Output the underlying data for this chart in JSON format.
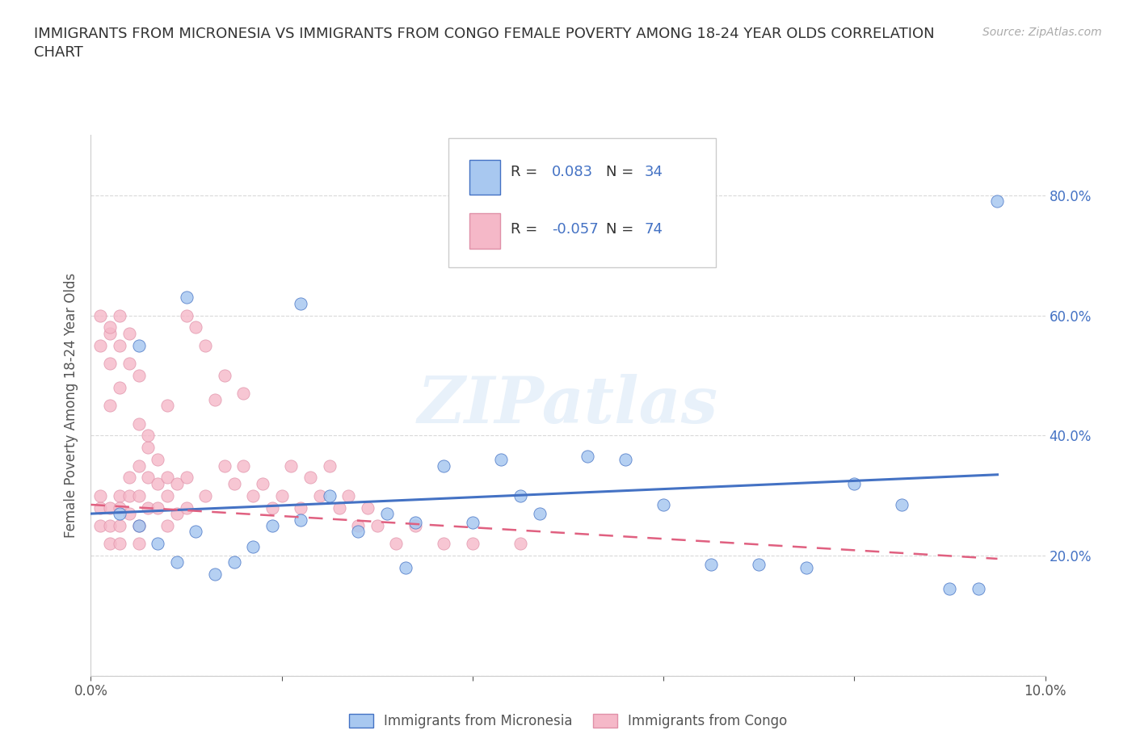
{
  "title": "IMMIGRANTS FROM MICRONESIA VS IMMIGRANTS FROM CONGO FEMALE POVERTY AMONG 18-24 YEAR OLDS CORRELATION\nCHART",
  "source": "Source: ZipAtlas.com",
  "ylabel": "Female Poverty Among 18-24 Year Olds",
  "watermark": "ZIPatlas",
  "xlim": [
    0.0,
    0.1
  ],
  "ylim": [
    0.0,
    0.9
  ],
  "ytick_positions": [
    0.0,
    0.2,
    0.4,
    0.6,
    0.8
  ],
  "yticklabels_right": [
    "",
    "20.0%",
    "40.0%",
    "60.0%",
    "80.0%"
  ],
  "micronesia_color": "#a8c8f0",
  "congo_color": "#f5b8c8",
  "line_micronesia": "#4472c4",
  "line_congo": "#e06080",
  "background_color": "#ffffff",
  "grid_color": "#d0d0d0",
  "mic_trend_x": [
    0.0,
    0.095
  ],
  "mic_trend_y": [
    0.27,
    0.335
  ],
  "con_trend_x": [
    0.0,
    0.095
  ],
  "con_trend_y": [
    0.285,
    0.195
  ],
  "micronesia_x": [
    0.003,
    0.005,
    0.007,
    0.009,
    0.011,
    0.013,
    0.015,
    0.017,
    0.019,
    0.022,
    0.025,
    0.028,
    0.031,
    0.034,
    0.037,
    0.04,
    0.043,
    0.047,
    0.052,
    0.056,
    0.06,
    0.065,
    0.07,
    0.075,
    0.08,
    0.085,
    0.09,
    0.093,
    0.095,
    0.005,
    0.01,
    0.022,
    0.033,
    0.045
  ],
  "micronesia_y": [
    0.27,
    0.25,
    0.22,
    0.19,
    0.24,
    0.17,
    0.19,
    0.215,
    0.25,
    0.26,
    0.3,
    0.24,
    0.27,
    0.255,
    0.35,
    0.255,
    0.36,
    0.27,
    0.365,
    0.36,
    0.285,
    0.185,
    0.185,
    0.18,
    0.32,
    0.285,
    0.145,
    0.145,
    0.79,
    0.55,
    0.63,
    0.62,
    0.18,
    0.3
  ],
  "congo_x": [
    0.001,
    0.001,
    0.001,
    0.002,
    0.002,
    0.002,
    0.003,
    0.003,
    0.003,
    0.003,
    0.004,
    0.004,
    0.004,
    0.005,
    0.005,
    0.005,
    0.005,
    0.006,
    0.006,
    0.006,
    0.007,
    0.007,
    0.007,
    0.008,
    0.008,
    0.008,
    0.009,
    0.009,
    0.01,
    0.01,
    0.011,
    0.012,
    0.013,
    0.014,
    0.015,
    0.016,
    0.017,
    0.018,
    0.019,
    0.02,
    0.021,
    0.022,
    0.023,
    0.024,
    0.025,
    0.026,
    0.027,
    0.028,
    0.029,
    0.03,
    0.032,
    0.034,
    0.037,
    0.04,
    0.045,
    0.005,
    0.006,
    0.008,
    0.01,
    0.012,
    0.014,
    0.016,
    0.003,
    0.004,
    0.002,
    0.001,
    0.001,
    0.002,
    0.003,
    0.002,
    0.004,
    0.005,
    0.003,
    0.002
  ],
  "congo_y": [
    0.28,
    0.25,
    0.3,
    0.25,
    0.28,
    0.22,
    0.3,
    0.28,
    0.25,
    0.22,
    0.33,
    0.3,
    0.27,
    0.35,
    0.3,
    0.25,
    0.22,
    0.38,
    0.33,
    0.28,
    0.36,
    0.32,
    0.28,
    0.33,
    0.3,
    0.25,
    0.32,
    0.27,
    0.33,
    0.28,
    0.58,
    0.3,
    0.46,
    0.35,
    0.32,
    0.35,
    0.3,
    0.32,
    0.28,
    0.3,
    0.35,
    0.28,
    0.33,
    0.3,
    0.35,
    0.28,
    0.3,
    0.25,
    0.28,
    0.25,
    0.22,
    0.25,
    0.22,
    0.22,
    0.22,
    0.42,
    0.4,
    0.45,
    0.6,
    0.55,
    0.5,
    0.47,
    0.6,
    0.57,
    0.57,
    0.6,
    0.55,
    0.58,
    0.55,
    0.52,
    0.52,
    0.5,
    0.48,
    0.45
  ]
}
